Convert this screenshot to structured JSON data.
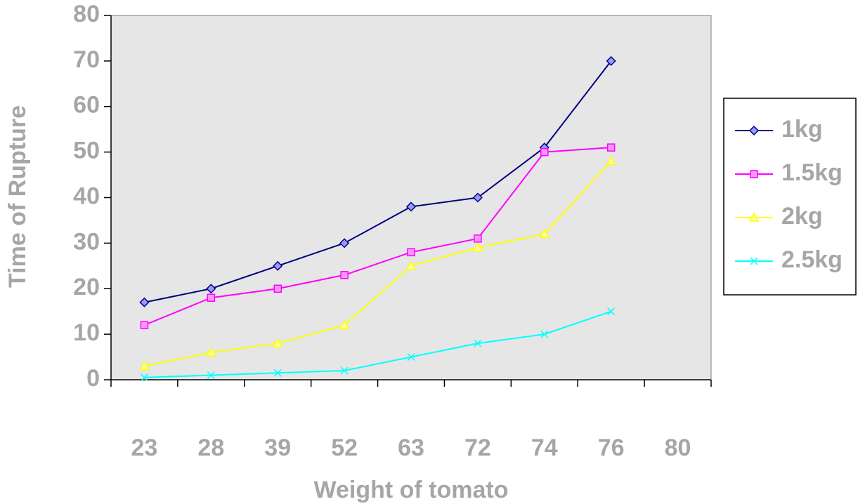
{
  "chart_data": {
    "type": "line",
    "x_label": "Weight of tomato",
    "y_label": "Time of Rupture",
    "categories": [
      "23",
      "28",
      "39",
      "52",
      "63",
      "72",
      "74",
      "76",
      "80"
    ],
    "series": [
      {
        "name": "1kg",
        "color": "#000080",
        "marker": "diamond",
        "marker_fill": "#9999ff",
        "values": [
          17,
          20,
          25,
          30,
          38,
          40,
          51,
          70,
          null
        ]
      },
      {
        "name": "1.5kg",
        "color": "#ff00ff",
        "marker": "square",
        "marker_fill": "#ff99ff",
        "values": [
          12,
          18,
          20,
          23,
          28,
          31,
          50,
          51,
          null
        ]
      },
      {
        "name": "2kg",
        "color": "#ffff00",
        "marker": "triangle",
        "marker_fill": "#ffff99",
        "values": [
          3,
          6,
          8,
          12,
          25,
          29,
          32,
          48,
          null
        ]
      },
      {
        "name": "2.5kg",
        "color": "#00ffff",
        "marker": "x",
        "marker_fill": "#00ffff",
        "values": [
          0.5,
          1,
          1.5,
          2,
          5,
          8,
          10,
          15,
          null
        ]
      }
    ],
    "ylim": [
      0,
      80
    ],
    "yticks": [
      0,
      10,
      20,
      30,
      40,
      50,
      60,
      70,
      80
    ],
    "grid": false,
    "legend": "right",
    "plot_background": "#e6e6e6"
  }
}
